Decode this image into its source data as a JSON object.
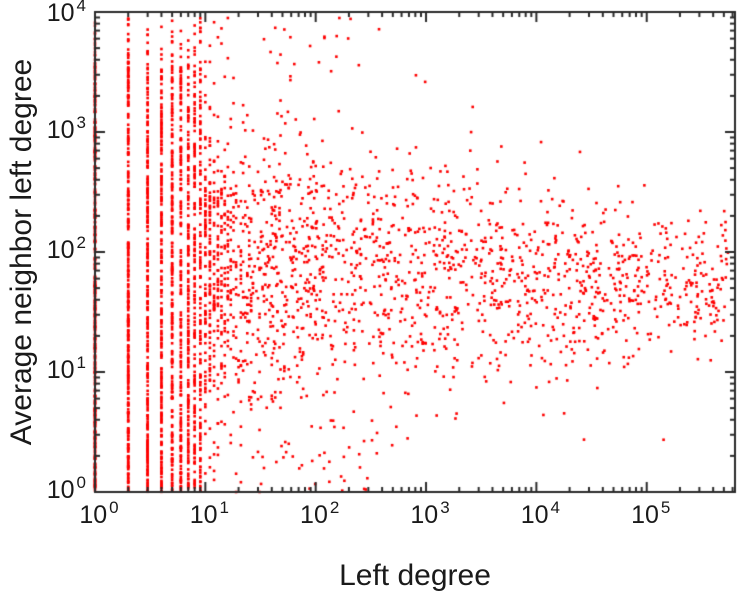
{
  "chart_data": {
    "type": "scatter",
    "title": "",
    "xlabel": "Left degree",
    "ylabel": "Average neighbor left degree",
    "x_scale": "log",
    "y_scale": "log",
    "xlim": [
      1,
      630957
    ],
    "ylim": [
      1,
      10000
    ],
    "xlim_exponents": [
      0,
      5.8
    ],
    "ylim_exponents": [
      0,
      4
    ],
    "x_tick_exponents": [
      0,
      1,
      2,
      3,
      4,
      5
    ],
    "y_tick_exponents": [
      0,
      1,
      2,
      3,
      4
    ],
    "tick_base": "10",
    "grid": false,
    "legend": null,
    "point_color": "#fe0000",
    "axis_color": "#2a2a2a",
    "background_color": "#ffffff",
    "point_generator": {
      "seed": 1337,
      "integer_bands": {
        "x_values": [
          1,
          2,
          3,
          4,
          5,
          6,
          7,
          8,
          9
        ],
        "counts": [
          420,
          320,
          270,
          230,
          200,
          180,
          165,
          150,
          140
        ],
        "logy_range": [
          0,
          3.55
        ],
        "high_tail_probability": 0.04,
        "high_tail_logy_range": [
          3.55,
          3.95
        ]
      },
      "cloud": {
        "count": 1900,
        "logx_range": [
          1.0,
          5.75
        ],
        "logx_power": 1.7,
        "integerize_below_logx": 2.0,
        "logy_mean_at_logx1": 1.9,
        "logy_mean_slope": -0.05,
        "logy_sd_at_logx0": 0.78,
        "logy_sd_slope": -0.09,
        "logy_sd_min": 0.3,
        "logy_clamp": [
          0,
          3.95
        ]
      },
      "top_outliers": {
        "count": 35,
        "logx_range": [
          0,
          2.6
        ],
        "logy_range": [
          3.45,
          3.95
        ]
      },
      "bottom_scatter": {
        "count": 60,
        "logx_range": [
          0,
          2.6
        ],
        "logy_range": [
          0,
          0.45
        ]
      }
    }
  }
}
